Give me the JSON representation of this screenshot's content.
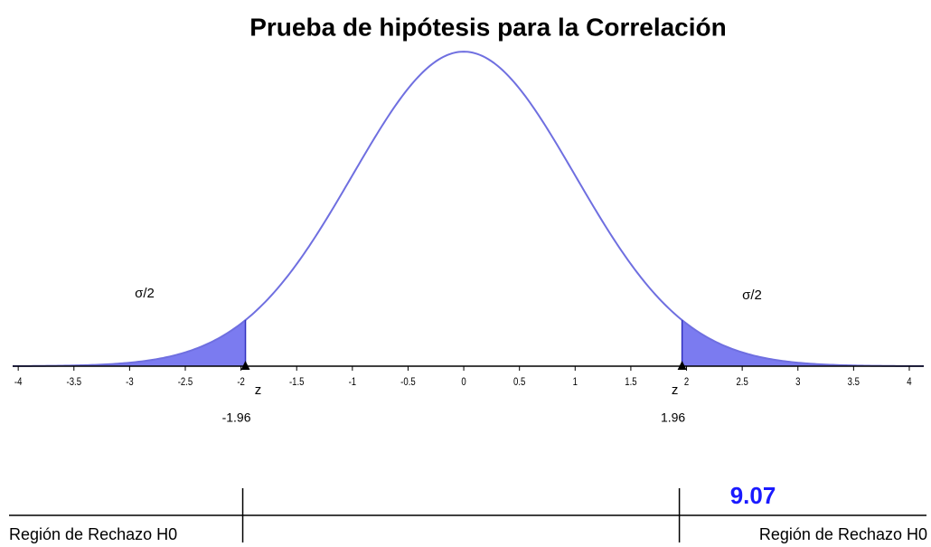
{
  "title": "Prueba de hipótesis para la Correlación",
  "axis": {
    "xlim": [
      -4.05,
      4.13
    ],
    "xticks": [
      -4,
      -3.5,
      -3,
      -2.5,
      -2,
      -1.5,
      -1,
      -0.5,
      0,
      0.5,
      1,
      1.5,
      2,
      2.5,
      3,
      3.5,
      4
    ]
  },
  "critical": [
    {
      "value": -1.96,
      "symbol": "z"
    },
    {
      "value": 1.96,
      "symbol": "z"
    }
  ],
  "tail_labels": [
    "σ/2",
    "σ/2"
  ],
  "regions": [
    "Región de Rechazo H0",
    "Región de Rechazo H0"
  ],
  "statistic": 9.07
}
